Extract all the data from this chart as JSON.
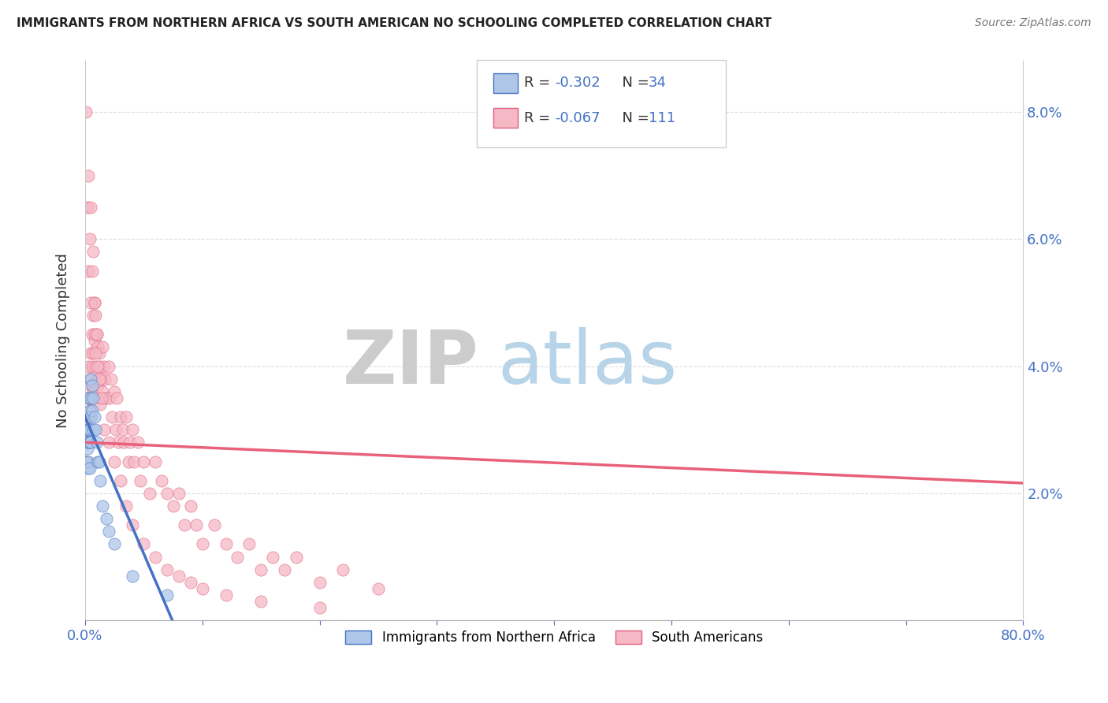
{
  "title": "IMMIGRANTS FROM NORTHERN AFRICA VS SOUTH AMERICAN NO SCHOOLING COMPLETED CORRELATION CHART",
  "source": "Source: ZipAtlas.com",
  "ylabel": "No Schooling Completed",
  "xlim": [
    0.0,
    0.8
  ],
  "ylim": [
    0.0,
    0.088
  ],
  "legend_r1": "-0.302",
  "legend_n1": "34",
  "legend_r2": "-0.067",
  "legend_n2": "111",
  "blue_fill": "#aec6e8",
  "blue_edge": "#4472c4",
  "pink_fill": "#f5b8c4",
  "pink_edge": "#e06080",
  "blue_line": "#4472c4",
  "pink_line": "#e8607a",
  "dash_line": "#bbbbbb",
  "text_color": "#4472c4",
  "watermark_zip": "ZIP",
  "watermark_atlas": "atlas",
  "blue_x": [
    0.001,
    0.001,
    0.002,
    0.002,
    0.002,
    0.002,
    0.003,
    0.003,
    0.003,
    0.003,
    0.004,
    0.004,
    0.004,
    0.004,
    0.005,
    0.005,
    0.005,
    0.005,
    0.006,
    0.006,
    0.007,
    0.007,
    0.008,
    0.009,
    0.01,
    0.011,
    0.012,
    0.013,
    0.015,
    0.018,
    0.02,
    0.025,
    0.04,
    0.07
  ],
  "blue_y": [
    0.028,
    0.025,
    0.032,
    0.03,
    0.027,
    0.024,
    0.035,
    0.03,
    0.028,
    0.025,
    0.033,
    0.03,
    0.028,
    0.024,
    0.038,
    0.035,
    0.032,
    0.028,
    0.037,
    0.033,
    0.035,
    0.03,
    0.032,
    0.03,
    0.028,
    0.025,
    0.025,
    0.022,
    0.018,
    0.016,
    0.014,
    0.012,
    0.007,
    0.004
  ],
  "pink_x": [
    0.001,
    0.001,
    0.001,
    0.002,
    0.002,
    0.002,
    0.002,
    0.003,
    0.003,
    0.003,
    0.004,
    0.004,
    0.004,
    0.005,
    0.005,
    0.005,
    0.006,
    0.006,
    0.006,
    0.007,
    0.007,
    0.007,
    0.008,
    0.008,
    0.009,
    0.009,
    0.01,
    0.01,
    0.011,
    0.011,
    0.012,
    0.012,
    0.013,
    0.013,
    0.014,
    0.015,
    0.015,
    0.016,
    0.017,
    0.018,
    0.02,
    0.021,
    0.022,
    0.023,
    0.025,
    0.026,
    0.027,
    0.028,
    0.03,
    0.032,
    0.033,
    0.035,
    0.037,
    0.038,
    0.04,
    0.042,
    0.045,
    0.047,
    0.05,
    0.055,
    0.06,
    0.065,
    0.07,
    0.075,
    0.08,
    0.085,
    0.09,
    0.095,
    0.1,
    0.11,
    0.12,
    0.13,
    0.14,
    0.15,
    0.16,
    0.17,
    0.18,
    0.2,
    0.22,
    0.25,
    0.001,
    0.002,
    0.003,
    0.003,
    0.004,
    0.005,
    0.005,
    0.006,
    0.007,
    0.008,
    0.008,
    0.009,
    0.01,
    0.011,
    0.012,
    0.014,
    0.016,
    0.02,
    0.025,
    0.03,
    0.035,
    0.04,
    0.05,
    0.06,
    0.07,
    0.08,
    0.09,
    0.1,
    0.12,
    0.15,
    0.2
  ],
  "pink_y": [
    0.03,
    0.028,
    0.025,
    0.035,
    0.032,
    0.028,
    0.025,
    0.04,
    0.035,
    0.03,
    0.038,
    0.033,
    0.028,
    0.042,
    0.037,
    0.032,
    0.045,
    0.04,
    0.035,
    0.048,
    0.042,
    0.036,
    0.05,
    0.044,
    0.048,
    0.04,
    0.045,
    0.038,
    0.043,
    0.037,
    0.042,
    0.035,
    0.04,
    0.034,
    0.038,
    0.043,
    0.036,
    0.04,
    0.038,
    0.035,
    0.04,
    0.035,
    0.038,
    0.032,
    0.036,
    0.03,
    0.035,
    0.028,
    0.032,
    0.03,
    0.028,
    0.032,
    0.025,
    0.028,
    0.03,
    0.025,
    0.028,
    0.022,
    0.025,
    0.02,
    0.025,
    0.022,
    0.02,
    0.018,
    0.02,
    0.015,
    0.018,
    0.015,
    0.012,
    0.015,
    0.012,
    0.01,
    0.012,
    0.008,
    0.01,
    0.008,
    0.01,
    0.006,
    0.008,
    0.005,
    0.08,
    0.065,
    0.07,
    0.055,
    0.06,
    0.065,
    0.05,
    0.055,
    0.058,
    0.05,
    0.045,
    0.042,
    0.045,
    0.04,
    0.038,
    0.035,
    0.03,
    0.028,
    0.025,
    0.022,
    0.018,
    0.015,
    0.012,
    0.01,
    0.008,
    0.007,
    0.006,
    0.005,
    0.004,
    0.003,
    0.002
  ]
}
